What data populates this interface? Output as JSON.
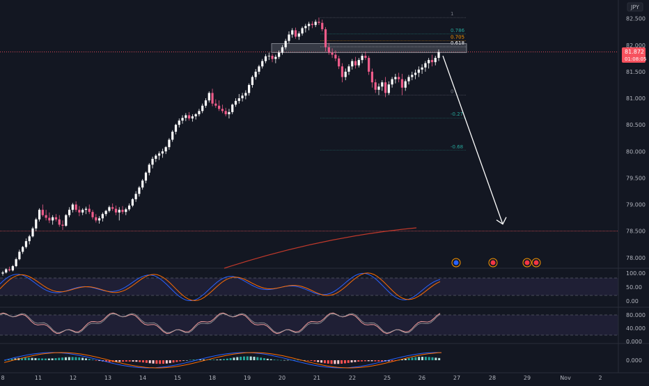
{
  "chart_data": {
    "type": "candlestick",
    "currency_label": "JPY",
    "price_axis": {
      "ticks": [
        "82.500",
        "82.000",
        "81.500",
        "81.000",
        "80.500",
        "80.000",
        "79.500",
        "79.000",
        "78.500",
        "78.000"
      ],
      "ylim": [
        77.8,
        82.85
      ]
    },
    "x_axis": {
      "ticks": [
        "8",
        "11",
        "12",
        "13",
        "14",
        "15",
        "18",
        "19",
        "20",
        "21",
        "22",
        "25",
        "26",
        "27",
        "28",
        "29",
        "Nov",
        "2"
      ]
    },
    "last_price": {
      "value": "81.872",
      "countdown": "01:08:05"
    },
    "fib_levels": [
      {
        "label": "1",
        "value": 82.52
      },
      {
        "label": "0.786",
        "value": 82.21
      },
      {
        "label": "0.705",
        "value": 82.08
      },
      {
        "label": "0.618",
        "value": 81.97
      },
      {
        "label": "0",
        "value": 81.06
      },
      {
        "label": "-0.27",
        "value": 80.63
      },
      {
        "label": "-0.68",
        "value": 80.02
      }
    ],
    "resistance_zone": [
      81.86,
      82.03
    ],
    "horizontal_line": 78.5,
    "projection_arrow": {
      "from": [
        81.8
      ],
      "to": [
        78.65
      ]
    },
    "candles": [
      [
        77.7,
        77.75,
        77.66,
        77.72
      ],
      [
        77.72,
        77.8,
        77.7,
        77.78
      ],
      [
        77.78,
        77.83,
        77.74,
        77.76
      ],
      [
        77.76,
        77.86,
        77.74,
        77.84
      ],
      [
        77.84,
        78.0,
        77.82,
        77.97
      ],
      [
        77.97,
        78.15,
        77.95,
        78.11
      ],
      [
        78.11,
        78.22,
        78.07,
        78.2
      ],
      [
        78.2,
        78.36,
        78.17,
        78.31
      ],
      [
        78.31,
        78.43,
        78.25,
        78.4
      ],
      [
        78.4,
        78.58,
        78.38,
        78.55
      ],
      [
        78.55,
        78.75,
        78.5,
        78.72
      ],
      [
        78.72,
        78.93,
        78.68,
        78.9
      ],
      [
        78.9,
        79.0,
        78.77,
        78.8
      ],
      [
        78.8,
        78.9,
        78.7,
        78.75
      ],
      [
        78.75,
        78.85,
        78.65,
        78.7
      ],
      [
        78.7,
        78.8,
        78.62,
        78.76
      ],
      [
        78.76,
        78.82,
        78.68,
        78.72
      ],
      [
        78.72,
        78.8,
        78.58,
        78.62
      ],
      [
        78.62,
        78.7,
        78.52,
        78.6
      ],
      [
        78.6,
        78.82,
        78.58,
        78.8
      ],
      [
        78.8,
        78.95,
        78.76,
        78.9
      ],
      [
        78.9,
        79.03,
        78.85,
        79.0
      ],
      [
        79.0,
        79.06,
        78.86,
        78.9
      ],
      [
        78.9,
        78.97,
        78.78,
        78.85
      ],
      [
        78.85,
        78.93,
        78.8,
        78.9
      ],
      [
        78.9,
        78.96,
        78.82,
        78.92
      ],
      [
        78.92,
        79.0,
        78.82,
        78.86
      ],
      [
        78.86,
        78.9,
        78.72,
        78.76
      ],
      [
        78.76,
        78.82,
        78.66,
        78.7
      ],
      [
        78.7,
        78.78,
        78.64,
        78.74
      ],
      [
        78.74,
        78.85,
        78.68,
        78.82
      ],
      [
        78.82,
        78.9,
        78.78,
        78.88
      ],
      [
        78.88,
        78.98,
        78.85,
        78.95
      ],
      [
        78.95,
        79.02,
        78.88,
        78.92
      ],
      [
        78.92,
        78.98,
        78.8,
        78.85
      ],
      [
        78.85,
        78.95,
        78.7,
        78.9
      ],
      [
        78.9,
        78.97,
        78.82,
        78.86
      ],
      [
        78.86,
        78.94,
        78.8,
        78.91
      ],
      [
        78.91,
        79.02,
        78.88,
        78.98
      ],
      [
        78.98,
        79.12,
        78.95,
        79.1
      ],
      [
        79.1,
        79.25,
        79.05,
        79.2
      ],
      [
        79.2,
        79.35,
        79.15,
        79.32
      ],
      [
        79.32,
        79.48,
        79.28,
        79.45
      ],
      [
        79.45,
        79.62,
        79.4,
        79.6
      ],
      [
        79.6,
        79.78,
        79.55,
        79.75
      ],
      [
        79.75,
        79.9,
        79.68,
        79.86
      ],
      [
        79.86,
        79.95,
        79.8,
        79.92
      ],
      [
        79.92,
        80.0,
        79.84,
        79.96
      ],
      [
        79.96,
        80.05,
        79.88,
        80.0
      ],
      [
        80.0,
        80.1,
        79.95,
        80.08
      ],
      [
        80.08,
        80.25,
        80.03,
        80.22
      ],
      [
        80.22,
        80.4,
        80.18,
        80.37
      ],
      [
        80.37,
        80.52,
        80.32,
        80.5
      ],
      [
        80.5,
        80.62,
        80.45,
        80.58
      ],
      [
        80.58,
        80.68,
        80.52,
        80.63
      ],
      [
        80.63,
        80.72,
        80.57,
        80.68
      ],
      [
        80.68,
        80.74,
        80.58,
        80.62
      ],
      [
        80.62,
        80.7,
        80.56,
        80.66
      ],
      [
        80.66,
        80.72,
        80.6,
        80.7
      ],
      [
        80.7,
        80.8,
        80.66,
        80.76
      ],
      [
        80.76,
        80.9,
        80.72,
        80.86
      ],
      [
        80.86,
        81.0,
        80.82,
        80.96
      ],
      [
        80.96,
        81.13,
        80.92,
        81.1
      ],
      [
        81.1,
        81.18,
        80.85,
        80.9
      ],
      [
        80.9,
        80.98,
        80.82,
        80.86
      ],
      [
        80.86,
        80.96,
        80.76,
        80.8
      ],
      [
        80.8,
        80.88,
        80.72,
        80.76
      ],
      [
        80.76,
        80.82,
        80.66,
        80.7
      ],
      [
        80.7,
        80.8,
        80.62,
        80.74
      ],
      [
        80.74,
        80.9,
        80.7,
        80.88
      ],
      [
        80.88,
        81.0,
        80.84,
        80.95
      ],
      [
        80.95,
        81.08,
        80.9,
        81.0
      ],
      [
        81.0,
        81.1,
        80.94,
        81.05
      ],
      [
        81.05,
        81.15,
        80.98,
        81.1
      ],
      [
        81.1,
        81.28,
        81.05,
        81.25
      ],
      [
        81.25,
        81.43,
        81.2,
        81.4
      ],
      [
        81.4,
        81.55,
        81.35,
        81.5
      ],
      [
        81.5,
        81.63,
        81.45,
        81.6
      ],
      [
        81.6,
        81.74,
        81.56,
        81.7
      ],
      [
        81.7,
        81.83,
        81.66,
        81.79
      ],
      [
        81.79,
        81.86,
        81.72,
        81.8
      ],
      [
        81.8,
        81.84,
        81.68,
        81.74
      ],
      [
        81.74,
        81.82,
        81.66,
        81.78
      ],
      [
        81.78,
        81.9,
        81.74,
        81.86
      ],
      [
        81.86,
        82.0,
        81.82,
        81.96
      ],
      [
        81.96,
        82.12,
        81.92,
        82.08
      ],
      [
        82.08,
        82.26,
        82.04,
        82.2
      ],
      [
        82.2,
        82.32,
        82.14,
        82.28
      ],
      [
        82.28,
        82.33,
        82.12,
        82.16
      ],
      [
        82.16,
        82.26,
        82.1,
        82.22
      ],
      [
        82.22,
        82.35,
        82.18,
        82.32
      ],
      [
        82.32,
        82.4,
        82.24,
        82.36
      ],
      [
        82.36,
        82.44,
        82.28,
        82.4
      ],
      [
        82.4,
        82.45,
        82.32,
        82.38
      ],
      [
        82.38,
        82.48,
        82.34,
        82.44
      ],
      [
        82.44,
        82.52,
        82.38,
        82.42
      ],
      [
        82.42,
        82.48,
        82.26,
        82.3
      ],
      [
        82.3,
        82.34,
        81.88,
        81.96
      ],
      [
        81.96,
        82.04,
        81.82,
        81.86
      ],
      [
        81.86,
        81.94,
        81.76,
        81.82
      ],
      [
        81.82,
        81.9,
        81.7,
        81.75
      ],
      [
        81.75,
        81.8,
        81.55,
        81.6
      ],
      [
        81.6,
        81.66,
        81.3,
        81.4
      ],
      [
        81.4,
        81.56,
        81.34,
        81.5
      ],
      [
        81.5,
        81.64,
        81.44,
        81.6
      ],
      [
        81.6,
        81.74,
        81.54,
        81.7
      ],
      [
        81.7,
        81.78,
        81.56,
        81.62
      ],
      [
        81.62,
        81.76,
        81.58,
        81.72
      ],
      [
        81.72,
        81.84,
        81.66,
        81.8
      ],
      [
        81.8,
        81.88,
        81.72,
        81.76
      ],
      [
        81.76,
        81.8,
        81.44,
        81.5
      ],
      [
        81.5,
        81.56,
        81.2,
        81.3
      ],
      [
        81.3,
        81.36,
        81.1,
        81.16
      ],
      [
        81.16,
        81.28,
        81.06,
        81.22
      ],
      [
        81.22,
        81.34,
        81.14,
        81.3
      ],
      [
        81.3,
        81.4,
        81.02,
        81.1
      ],
      [
        81.1,
        81.32,
        81.06,
        81.26
      ],
      [
        81.26,
        81.4,
        81.2,
        81.36
      ],
      [
        81.36,
        81.46,
        81.28,
        81.4
      ],
      [
        81.4,
        81.48,
        81.3,
        81.36
      ],
      [
        81.36,
        81.46,
        81.06,
        81.2
      ],
      [
        81.2,
        81.36,
        81.14,
        81.32
      ],
      [
        81.32,
        81.44,
        81.26,
        81.4
      ],
      [
        81.4,
        81.5,
        81.34,
        81.44
      ],
      [
        81.44,
        81.54,
        81.36,
        81.48
      ],
      [
        81.48,
        81.6,
        81.4,
        81.54
      ],
      [
        81.54,
        81.64,
        81.46,
        81.58
      ],
      [
        81.58,
        81.7,
        81.5,
        81.66
      ],
      [
        81.66,
        81.76,
        81.56,
        81.72
      ],
      [
        81.72,
        81.82,
        81.6,
        81.68
      ],
      [
        81.68,
        81.8,
        81.62,
        81.76
      ],
      [
        81.76,
        81.92,
        81.7,
        81.87
      ]
    ],
    "indicator_scales": [
      [
        "100.00",
        "50.00",
        "0.00"
      ],
      [
        "80.000",
        "40.000",
        "0.000"
      ],
      [
        "0.000"
      ]
    ]
  }
}
